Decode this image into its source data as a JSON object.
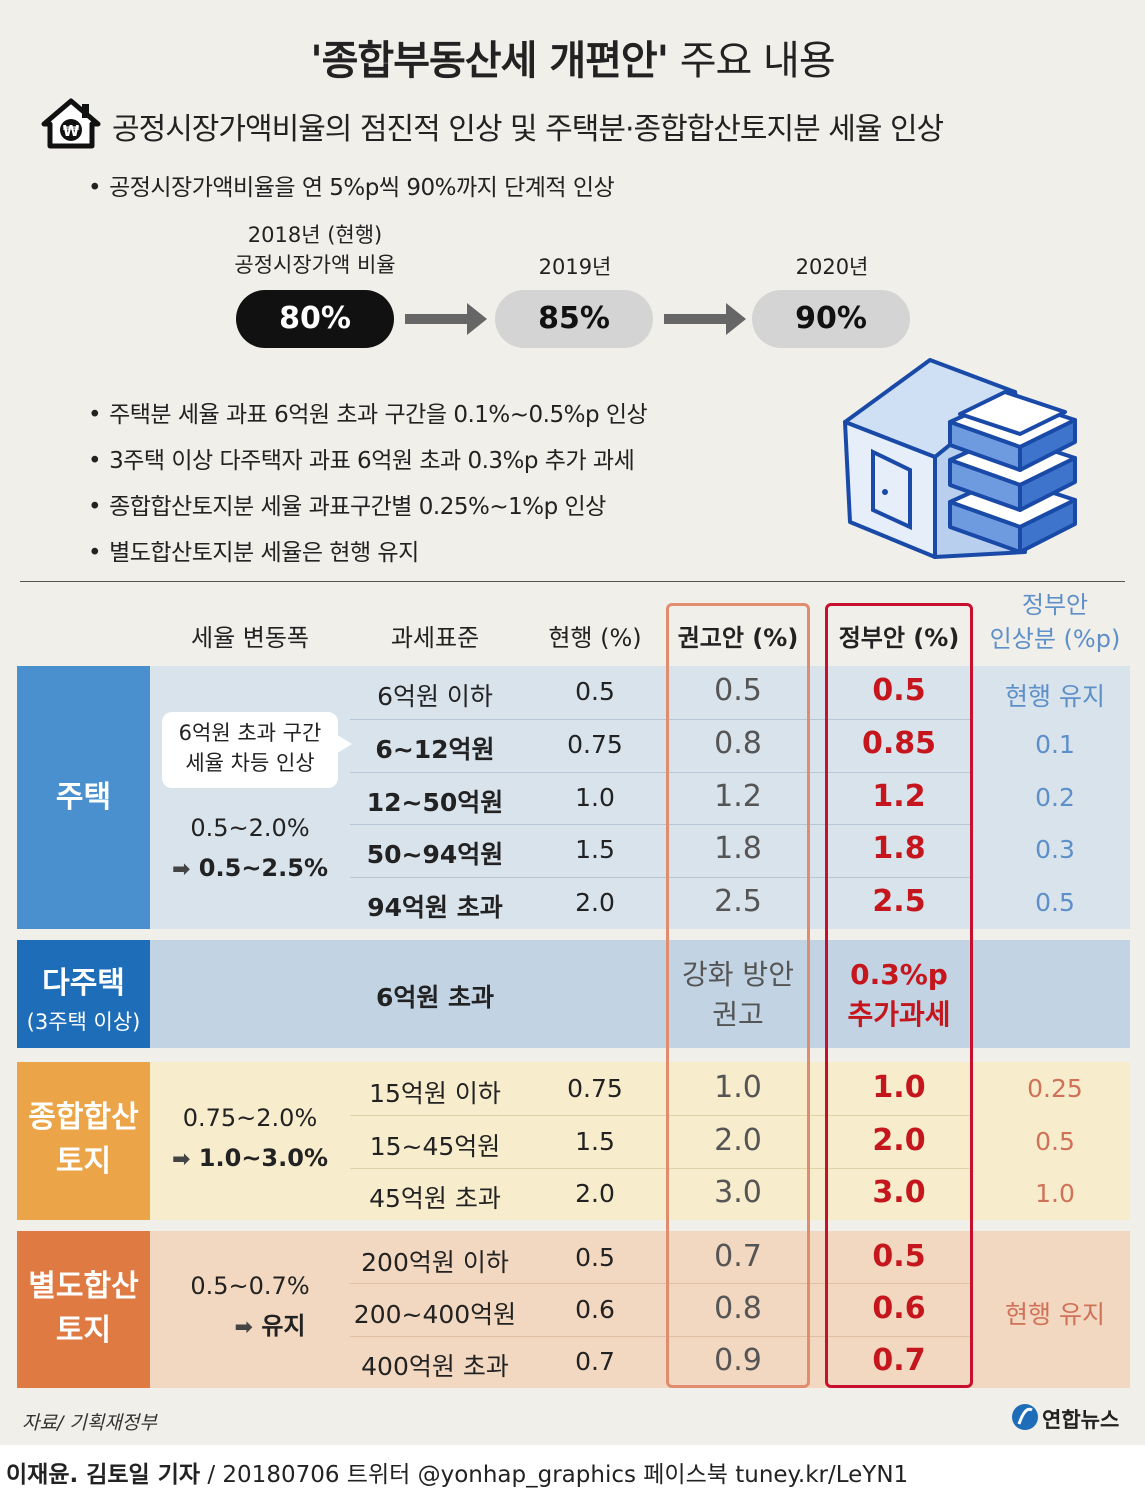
{
  "title": {
    "bold": "'종합부동산세 개편안'",
    "light": "주요 내용"
  },
  "subhead": "공정시장가액비율의 점진적 인상 및 주택분·종합합산토지분 세율 인상",
  "icon": "house-won-icon",
  "bullet_top": "공정시장가액비율을 연 5%p씩 90%까지 단계적 인상",
  "steps": [
    {
      "caption": [
        "2018년 (현행)",
        "공정시장가액 비율"
      ],
      "value": "80%"
    },
    {
      "caption": [
        "2019년"
      ],
      "value": "85%"
    },
    {
      "caption": [
        "2020년"
      ],
      "value": "90%"
    }
  ],
  "bullets": [
    "주택분 세율 과표 6억원 초과 구간을 0.1%~0.5%p 인상",
    "3주택 이상 다주택자 과표 6억원 초과 0.3%p 추가 과세",
    "종합합산토지분 세율 과표구간별 0.25%~1%p 인상",
    "별도합산토지분 세율은 현행 유지"
  ],
  "table": {
    "headers": {
      "range": "세율 변동폭",
      "base": "과세표준",
      "current": "현행 (%)",
      "recommend": "권고안 (%)",
      "gov": "정부안 (%)",
      "inc1": "정부안",
      "inc2": "인상분 (%p)"
    },
    "housing": {
      "label": "주택",
      "note": [
        "6억원 초과 구간",
        "세율 차등 인상"
      ],
      "range_from": "0.5~2.0%",
      "range_to": "0.5~2.5%",
      "rows": [
        {
          "base": "6억원 이하",
          "current": "0.5",
          "recommend": "0.5",
          "gov": "0.5",
          "inc": "현행 유지"
        },
        {
          "base": "6~12억원",
          "current": "0.75",
          "recommend": "0.8",
          "gov": "0.85",
          "inc": "0.1"
        },
        {
          "base": "12~50억원",
          "current": "1.0",
          "recommend": "1.2",
          "gov": "1.2",
          "inc": "0.2"
        },
        {
          "base": "50~94억원",
          "current": "1.5",
          "recommend": "1.8",
          "gov": "1.8",
          "inc": "0.3"
        },
        {
          "base": "94억원 초과",
          "current": "2.0",
          "recommend": "2.5",
          "gov": "2.5",
          "inc": "0.5"
        }
      ]
    },
    "multi": {
      "label": "다주택",
      "sublabel": "(3주택 이상)",
      "base": "6억원 초과",
      "recommend": [
        "강화 방안",
        "권고"
      ],
      "gov": [
        "0.3%p",
        "추가과세"
      ]
    },
    "combined": {
      "label": [
        "종합합산",
        "토지"
      ],
      "range_from": "0.75~2.0%",
      "range_to": "1.0~3.0%",
      "rows": [
        {
          "base": "15억원 이하",
          "current": "0.75",
          "recommend": "1.0",
          "gov": "1.0",
          "inc": "0.25"
        },
        {
          "base": "15~45억원",
          "current": "1.5",
          "recommend": "2.0",
          "gov": "2.0",
          "inc": "0.5"
        },
        {
          "base": "45억원 초과",
          "current": "2.0",
          "recommend": "3.0",
          "gov": "3.0",
          "inc": "1.0"
        }
      ]
    },
    "separate": {
      "label": [
        "별도합산",
        "토지"
      ],
      "range_from": "0.5~0.7%",
      "range_to": "유지",
      "inc": "현행 유지",
      "rows": [
        {
          "base": "200억원 이하",
          "current": "0.5",
          "recommend": "0.7",
          "gov": "0.5"
        },
        {
          "base": "200~400억원",
          "current": "0.6",
          "recommend": "0.8",
          "gov": "0.6"
        },
        {
          "base": "400억원 초과",
          "current": "0.7",
          "recommend": "0.9",
          "gov": "0.7"
        }
      ]
    }
  },
  "source": "자료/ 기획재정부",
  "logo": "연합뉴스",
  "credit": {
    "authors": "이재윤. 김토일 기자",
    "rest": " / 20180706   트위터 @yonhap_graphics   페이스북 tuney.kr/LeYN1"
  },
  "colors": {
    "housing": "#4a90cf",
    "multi": "#1d6db8",
    "combined": "#eba548",
    "separate": "#df7a43",
    "gov_red": "#c4161c"
  }
}
